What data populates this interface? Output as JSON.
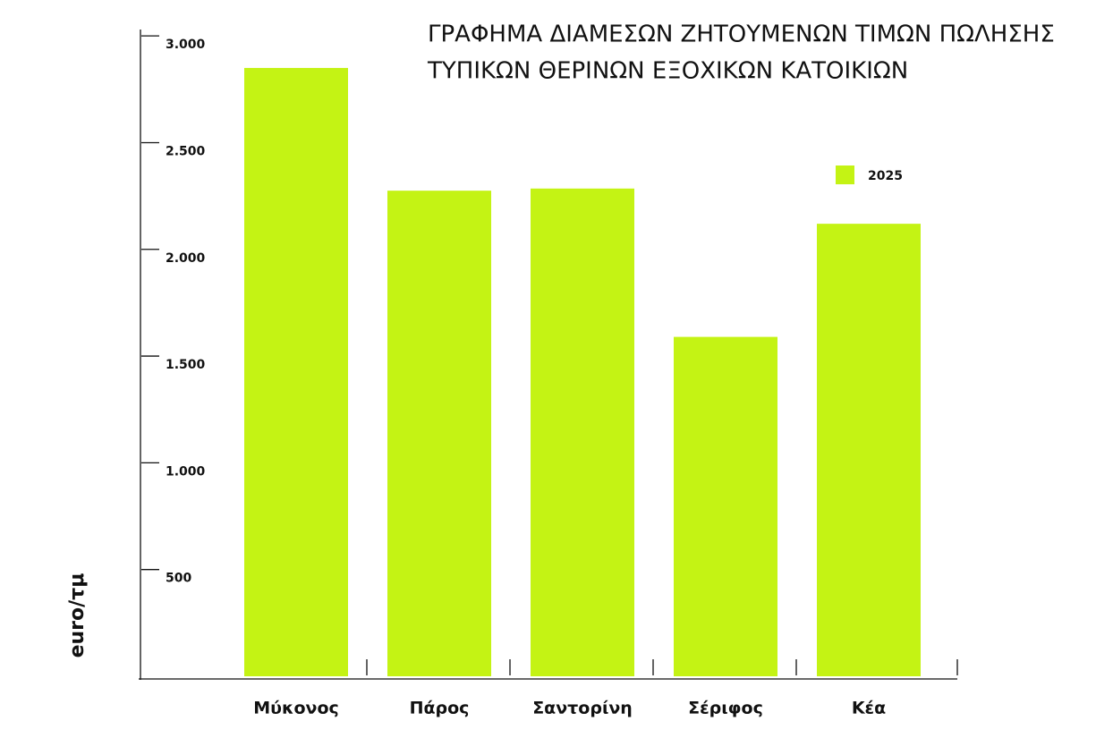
{
  "chart_data": {
    "type": "bar",
    "title": [
      "ΓΡΑΦΗΜΑ ΔΙΑΜΕΣΩΝ ΖΗΤΟΥΜΕΝΩΝ ΤΙΜΩΝ ΠΩΛΗΣΗΣ",
      "ΤΥΠΙΚΩΝ ΘΕΡΙΝΩΝ ΕΞΟΧΙΚΩΝ ΚΑΤΟΙΚΙΩΝ"
    ],
    "y_label": "euro/τμ",
    "categories": [
      "Μύκονος",
      "Πάρος",
      "Σαντορίνη",
      "Σέριφος",
      "Κέα"
    ],
    "series": [
      {
        "name": "2025",
        "color": "#c4f314",
        "values": [
          2850,
          2275,
          2285,
          1590,
          2120
        ]
      }
    ],
    "ylim": [
      0,
      3030
    ],
    "yticks": [
      500,
      {
        "value": 1000,
        "label": "1.000"
      },
      {
        "value": 1500,
        "label": "1.500"
      },
      {
        "value": 2000,
        "label": "2.000"
      },
      {
        "value": 2500,
        "label": "2.500"
      },
      {
        "value": 3000,
        "label": "3.000"
      }
    ],
    "legend": "upper-right"
  }
}
